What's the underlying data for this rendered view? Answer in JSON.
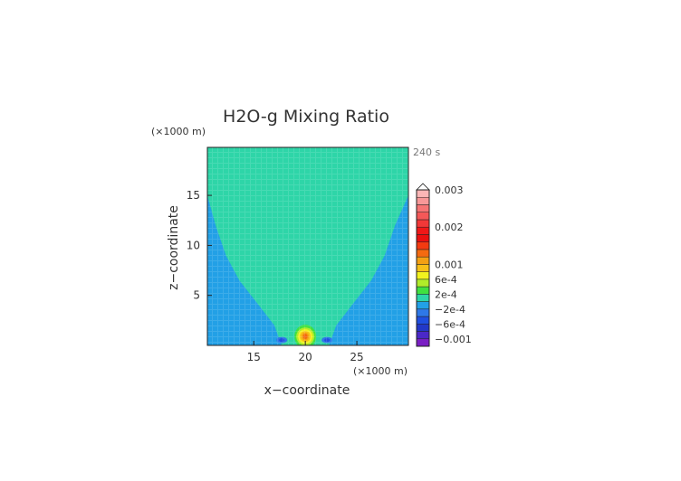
{
  "chart_data": {
    "type": "contour",
    "title": "H2O-g Mixing Ratio",
    "time_label": "240 s",
    "xlabel": "x−coordinate",
    "ylabel": "z−coordinate",
    "x_unit": "(×1000 m)",
    "z_unit": "(×1000 m)",
    "xlim": [
      10.5,
      30
    ],
    "zlim": [
      0,
      19.8
    ],
    "x_ticks": [
      15,
      20,
      25
    ],
    "z_ticks": [
      5,
      10,
      15
    ],
    "colorbar": {
      "tick_labels": [
        "0.003",
        "0.002",
        "0.001",
        "6e-4",
        "2e-4",
        "−2e-4",
        "−6e-4",
        "−0.001"
      ],
      "tick_values": [
        0.003,
        0.002,
        0.001,
        0.0006,
        0.0002,
        -0.0002,
        -0.0006,
        -0.001
      ],
      "levels": [
        {
          "min": -0.0012,
          "max": -0.001,
          "color": "#7a1fc4"
        },
        {
          "min": -0.001,
          "max": -0.0008,
          "color": "#4a28c8"
        },
        {
          "min": -0.0008,
          "max": -0.0006,
          "color": "#2238c8"
        },
        {
          "min": -0.0006,
          "max": -0.0004,
          "color": "#1f4fe0"
        },
        {
          "min": -0.0004,
          "max": -0.0002,
          "color": "#2e78e8"
        },
        {
          "min": -0.0002,
          "max": 0.0,
          "color": "#22a0e6"
        },
        {
          "min": 0.0,
          "max": 0.0002,
          "color": "#2ed5a8"
        },
        {
          "min": 0.0002,
          "max": 0.0004,
          "color": "#40e040"
        },
        {
          "min": 0.0004,
          "max": 0.0006,
          "color": "#b0ec2a"
        },
        {
          "min": 0.0006,
          "max": 0.0008,
          "color": "#f2f21e"
        },
        {
          "min": 0.0008,
          "max": 0.001,
          "color": "#f8c018"
        },
        {
          "min": 0.001,
          "max": 0.0012,
          "color": "#f4a014"
        },
        {
          "min": 0.0012,
          "max": 0.0014,
          "color": "#f46a10"
        },
        {
          "min": 0.0014,
          "max": 0.0016,
          "color": "#f43a10"
        },
        {
          "min": 0.0016,
          "max": 0.0018,
          "color": "#ea1010"
        },
        {
          "min": 0.0018,
          "max": 0.002,
          "color": "#f01818"
        },
        {
          "min": 0.002,
          "max": 0.0022,
          "color": "#f23838"
        },
        {
          "min": 0.0022,
          "max": 0.0024,
          "color": "#f45858"
        },
        {
          "min": 0.0024,
          "max": 0.0026,
          "color": "#f67474"
        },
        {
          "min": 0.0026,
          "max": 0.0028,
          "color": "#f89898"
        },
        {
          "min": 0.0028,
          "max": 0.003,
          "color": "#fbb6b6"
        }
      ]
    },
    "background_level_color": "#22a0e6",
    "plume_level_color": "#2ed5a8",
    "plume_boundary_left": [
      [
        17.7,
        0
      ],
      [
        17.0,
        2
      ],
      [
        15.5,
        4
      ],
      [
        13.6,
        6.5
      ],
      [
        12.3,
        9
      ],
      [
        11.3,
        12
      ],
      [
        10.5,
        15
      ]
    ],
    "plume_boundary_right": [
      [
        22.3,
        0
      ],
      [
        23.0,
        2
      ],
      [
        24.5,
        4
      ],
      [
        26.4,
        6.5
      ],
      [
        27.7,
        9
      ],
      [
        28.7,
        12
      ],
      [
        30.0,
        15
      ]
    ],
    "core": {
      "x": 20.0,
      "z": 0.8
    }
  }
}
